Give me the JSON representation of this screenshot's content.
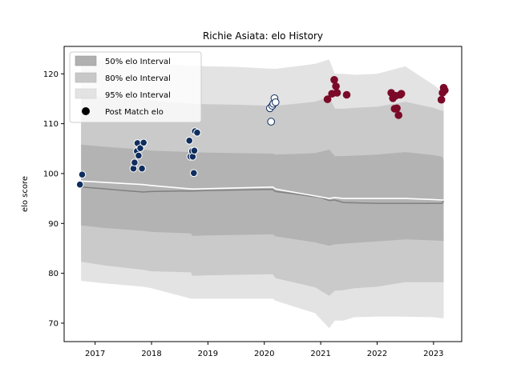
{
  "chart_data": {
    "type": "scatter",
    "title": "Richie Asiata: elo History",
    "xlabel": "",
    "ylabel": "elo score",
    "xlim": [
      2016.45,
      2023.5
    ],
    "ylim": [
      66.3,
      125.5
    ],
    "x_ticks": [
      2017,
      2018,
      2019,
      2020,
      2021,
      2022,
      2023
    ],
    "y_ticks": [
      70,
      80,
      90,
      100,
      110,
      120
    ],
    "grid": false,
    "legend_position": "top-left",
    "legend": [
      {
        "label": "50% elo Interval",
        "kind": "band",
        "color": "#b0b0b0"
      },
      {
        "label": "80% elo Interval",
        "kind": "band",
        "color": "#c8c8c8"
      },
      {
        "label": "95% elo Interval",
        "kind": "band",
        "color": "#e3e3e3"
      },
      {
        "label": "Post Match elo",
        "kind": "marker",
        "color": "#000000"
      }
    ],
    "bands": {
      "x": [
        2016.75,
        2017.15,
        2017.85,
        2018.0,
        2018.7,
        2018.72,
        2019.0,
        2019.5,
        2020.15,
        2020.2,
        2020.9,
        2021.15,
        2021.25,
        2021.4,
        2021.6,
        2022.0,
        2022.5,
        2023.0,
        2023.15,
        2023.18
      ],
      "ci95_upper": [
        123.0,
        122.7,
        122.2,
        122.0,
        121.6,
        121.6,
        121.5,
        121.4,
        121.0,
        121.0,
        122.0,
        122.9,
        120.0,
        120.0,
        119.8,
        120.0,
        121.5,
        117.8,
        116.5,
        116.5
      ],
      "ci95_lower": [
        78.5,
        78.0,
        77.3,
        77.0,
        74.9,
        74.9,
        74.9,
        74.9,
        74.9,
        74.5,
        72.0,
        69.0,
        70.5,
        70.5,
        71.2,
        71.3,
        71.3,
        71.2,
        71.0,
        71.0
      ],
      "ci80_upper": [
        115.8,
        115.4,
        114.9,
        114.6,
        114.0,
        114.0,
        113.9,
        113.8,
        113.6,
        113.6,
        114.4,
        115.4,
        113.0,
        113.0,
        113.2,
        113.4,
        114.4,
        113.2,
        112.6,
        112.6
      ],
      "ci80_lower": [
        82.3,
        81.6,
        80.7,
        80.4,
        80.2,
        79.5,
        79.6,
        79.7,
        79.8,
        79.0,
        77.2,
        75.5,
        76.5,
        76.6,
        77.0,
        77.3,
        78.2,
        78.2,
        78.2,
        78.2
      ],
      "ci50_upper": [
        105.8,
        105.4,
        104.8,
        104.6,
        104.3,
        104.3,
        104.2,
        104.1,
        104.0,
        103.8,
        104.1,
        104.8,
        103.5,
        103.5,
        103.6,
        103.8,
        104.3,
        103.7,
        103.4,
        102.7
      ],
      "ci50_lower": [
        89.6,
        89.1,
        88.5,
        88.3,
        88.0,
        87.5,
        87.6,
        87.7,
        87.8,
        87.4,
        86.2,
        85.5,
        85.8,
        85.9,
        86.1,
        86.4,
        86.8,
        86.6,
        86.5,
        86.5
      ]
    },
    "mean_line": {
      "color": "#808080",
      "x": [
        2016.75,
        2017.1,
        2017.5,
        2017.85,
        2018.0,
        2018.5,
        2018.72,
        2019.0,
        2019.5,
        2020.0,
        2020.15,
        2020.2,
        2020.5,
        2021.0,
        2021.15,
        2021.25,
        2021.4,
        2022.0,
        2022.5,
        2023.0,
        2023.15,
        2023.18
      ],
      "y": [
        97.3,
        97.0,
        96.6,
        96.3,
        96.4,
        96.5,
        96.5,
        96.6,
        96.7,
        96.8,
        96.8,
        96.4,
        96.0,
        95.2,
        94.6,
        94.7,
        94.2,
        94.0,
        94.0,
        94.0,
        94.0,
        94.5
      ]
    },
    "median_line": {
      "color": "#ffffff",
      "x": [
        2016.75,
        2017.85,
        2018.0,
        2018.72,
        2020.15,
        2020.2,
        2021.15,
        2021.25,
        2021.4,
        2022.0,
        2022.5,
        2023.0,
        2023.15,
        2023.18
      ],
      "y": [
        98.5,
        97.8,
        97.6,
        96.9,
        97.3,
        96.9,
        95.0,
        95.2,
        95.0,
        95.0,
        95.0,
        94.8,
        94.7,
        94.7
      ]
    },
    "series": [
      {
        "fill": "#0f2e5e",
        "stroke": "#ffffff",
        "points": [
          [
            2016.73,
            97.8
          ],
          [
            2016.77,
            99.8
          ],
          [
            2017.68,
            101.0
          ],
          [
            2017.7,
            102.2
          ],
          [
            2017.74,
            104.5
          ],
          [
            2017.75,
            106.1
          ],
          [
            2017.77,
            103.6
          ],
          [
            2017.8,
            105.1
          ],
          [
            2017.83,
            101.0
          ],
          [
            2017.86,
            106.2
          ],
          [
            2018.67,
            106.6
          ],
          [
            2018.69,
            103.4
          ],
          [
            2018.72,
            104.5
          ],
          [
            2018.73,
            103.4
          ],
          [
            2018.75,
            100.1
          ],
          [
            2018.76,
            104.6
          ],
          [
            2018.77,
            108.5
          ],
          [
            2018.81,
            108.2
          ]
        ]
      },
      {
        "fill": "#ffffff",
        "stroke": "#0f2e5e",
        "points": [
          [
            2020.1,
            113.1
          ],
          [
            2020.12,
            110.4
          ],
          [
            2020.14,
            113.6
          ],
          [
            2020.16,
            114.0
          ],
          [
            2020.18,
            115.1
          ],
          [
            2020.2,
            114.3
          ]
        ]
      },
      {
        "fill": "#7b0a28",
        "stroke": "#7b0a28",
        "points": [
          [
            2021.12,
            114.9
          ],
          [
            2021.2,
            116.0
          ],
          [
            2021.24,
            118.8
          ],
          [
            2021.27,
            117.5
          ],
          [
            2021.29,
            116.2
          ],
          [
            2021.46,
            115.8
          ],
          [
            2022.25,
            116.2
          ],
          [
            2022.28,
            115.1
          ],
          [
            2022.31,
            113.0
          ],
          [
            2022.33,
            115.6
          ],
          [
            2022.35,
            113.1
          ],
          [
            2022.38,
            111.7
          ],
          [
            2022.41,
            115.8
          ],
          [
            2022.43,
            116.0
          ],
          [
            2023.14,
            114.8
          ],
          [
            2023.16,
            116.2
          ],
          [
            2023.18,
            117.2
          ],
          [
            2023.2,
            116.7
          ]
        ]
      }
    ]
  }
}
